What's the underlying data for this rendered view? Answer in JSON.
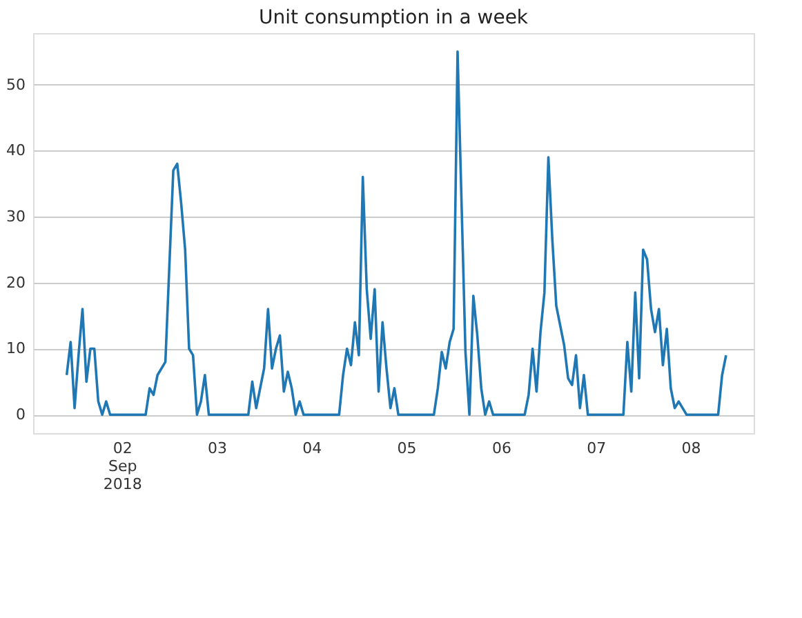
{
  "chart_data": {
    "type": "line",
    "title": "Unit consumption in a week",
    "x": [
      "2018-09-01T10:00",
      "2018-09-01T11:00",
      "2018-09-01T12:00",
      "2018-09-01T13:00",
      "2018-09-01T14:00",
      "2018-09-01T15:00",
      "2018-09-01T16:00",
      "2018-09-01T17:00",
      "2018-09-01T18:00",
      "2018-09-01T19:00",
      "2018-09-01T20:00",
      "2018-09-01T21:00",
      "2018-09-02T06:00",
      "2018-09-02T07:00",
      "2018-09-02T08:00",
      "2018-09-02T09:00",
      "2018-09-02T10:00",
      "2018-09-02T11:00",
      "2018-09-02T13:00",
      "2018-09-02T14:00",
      "2018-09-02T15:00",
      "2018-09-02T16:00",
      "2018-09-02T17:00",
      "2018-09-02T18:00",
      "2018-09-02T19:00",
      "2018-09-02T20:00",
      "2018-09-02T21:00",
      "2018-09-02T22:00",
      "2018-09-03T08:00",
      "2018-09-03T09:00",
      "2018-09-03T10:00",
      "2018-09-03T11:00",
      "2018-09-03T12:00",
      "2018-09-03T13:00",
      "2018-09-03T14:00",
      "2018-09-03T15:00",
      "2018-09-03T16:00",
      "2018-09-03T17:00",
      "2018-09-03T18:00",
      "2018-09-03T19:00",
      "2018-09-03T20:00",
      "2018-09-03T21:00",
      "2018-09-03T22:00",
      "2018-09-04T07:00",
      "2018-09-04T08:00",
      "2018-09-04T09:00",
      "2018-09-04T10:00",
      "2018-09-04T11:00",
      "2018-09-04T12:00",
      "2018-09-04T13:00",
      "2018-09-04T14:00",
      "2018-09-04T15:00",
      "2018-09-04T16:00",
      "2018-09-04T17:00",
      "2018-09-04T18:00",
      "2018-09-04T19:00",
      "2018-09-04T20:00",
      "2018-09-04T21:00",
      "2018-09-04T22:00",
      "2018-09-05T07:00",
      "2018-09-05T08:00",
      "2018-09-05T09:00",
      "2018-09-05T10:00",
      "2018-09-05T11:00",
      "2018-09-05T12:00",
      "2018-09-05T13:00",
      "2018-09-05T15:00",
      "2018-09-05T16:00",
      "2018-09-05T17:00",
      "2018-09-05T18:00",
      "2018-09-05T19:00",
      "2018-09-05T20:00",
      "2018-09-05T21:00",
      "2018-09-05T22:00",
      "2018-09-06T06:00",
      "2018-09-06T07:00",
      "2018-09-06T08:00",
      "2018-09-06T09:00",
      "2018-09-06T10:00",
      "2018-09-06T11:00",
      "2018-09-06T12:00",
      "2018-09-06T13:00",
      "2018-09-06T14:00",
      "2018-09-06T16:00",
      "2018-09-06T17:00",
      "2018-09-06T18:00",
      "2018-09-06T19:00",
      "2018-09-06T20:00",
      "2018-09-06T21:00",
      "2018-09-06T22:00",
      "2018-09-07T07:00",
      "2018-09-07T08:00",
      "2018-09-07T09:00",
      "2018-09-07T10:00",
      "2018-09-07T11:00",
      "2018-09-07T12:00",
      "2018-09-07T13:00",
      "2018-09-07T14:00",
      "2018-09-07T15:00",
      "2018-09-07T16:00",
      "2018-09-07T17:00",
      "2018-09-07T18:00",
      "2018-09-07T19:00",
      "2018-09-07T20:00",
      "2018-09-07T21:00",
      "2018-09-07T22:00",
      "2018-09-07T23:00",
      "2018-09-08T07:00",
      "2018-09-08T08:00",
      "2018-09-08T09:00"
    ],
    "series": [
      {
        "color": "#1f77b4",
        "values": [
          6,
          11,
          1,
          9,
          16,
          5,
          10,
          10,
          2,
          0,
          2,
          0,
          0,
          4,
          3,
          6,
          7,
          8,
          37,
          38,
          32,
          25,
          10,
          9,
          0,
          2,
          6,
          0,
          0,
          5,
          1,
          4,
          7,
          16,
          7,
          10,
          12,
          3.5,
          6.5,
          4,
          0,
          2,
          0,
          0,
          6,
          10,
          7.5,
          14,
          9,
          36,
          19,
          11.5,
          19,
          3.5,
          14,
          7,
          1,
          4,
          0,
          0,
          4,
          9.5,
          7,
          11,
          13,
          55,
          9.5,
          0,
          18,
          12,
          4,
          0,
          2,
          0,
          0,
          3,
          10,
          3.5,
          12.5,
          18.5,
          39,
          26.5,
          16.5,
          10.5,
          5.5,
          4.5,
          9,
          1,
          6,
          0,
          0,
          11,
          3.5,
          18.5,
          5.5,
          25,
          23.5,
          16,
          12.5,
          16,
          7.5,
          13,
          4,
          1,
          2,
          1,
          0,
          0,
          6,
          9
        ]
      }
    ],
    "xlim": [
      "2018-09-01T01:30",
      "2018-09-08T16:00"
    ],
    "xticks": [
      {
        "value": "2018-09-02",
        "label": "02\nSep\n2018"
      },
      {
        "value": "2018-09-03",
        "label": "03"
      },
      {
        "value": "2018-09-04",
        "label": "04"
      },
      {
        "value": "2018-09-05",
        "label": "05"
      },
      {
        "value": "2018-09-06",
        "label": "06"
      },
      {
        "value": "2018-09-07",
        "label": "07"
      },
      {
        "value": "2018-09-08",
        "label": "08"
      }
    ],
    "ylim": [
      -2.8,
      57.8
    ],
    "yticks": [
      0,
      10,
      20,
      30,
      40,
      50
    ],
    "grid": "y",
    "marker": "none",
    "line_style": "solid"
  }
}
